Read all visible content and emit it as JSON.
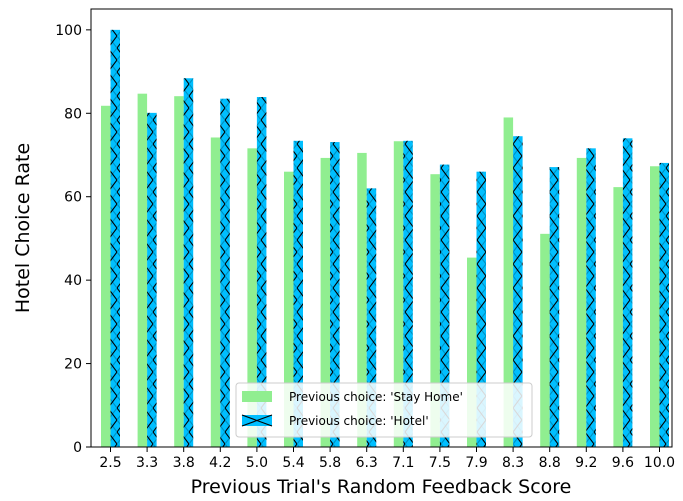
{
  "chart_data": {
    "type": "bar",
    "xlabel": "Previous Trial's Random Feedback Score",
    "ylabel": "Hotel Choice Rate",
    "ylim": [
      0,
      105
    ],
    "yticks": [
      "0",
      "20",
      "40",
      "60",
      "80",
      "100"
    ],
    "grid": false,
    "legend_position": "lower-center",
    "categories": [
      "2.5",
      "3.3",
      "3.8",
      "4.2",
      "5.0",
      "5.4",
      "5.8",
      "6.3",
      "7.1",
      "7.5",
      "7.9",
      "8.3",
      "8.8",
      "9.2",
      "9.6",
      "10.0"
    ],
    "series": [
      {
        "name": "Previous choice: 'Stay Home'",
        "color": "#90ee90",
        "hatch": "none",
        "values": [
          81.8,
          84.7,
          84.1,
          74.2,
          71.6,
          66.0,
          69.3,
          70.5,
          73.3,
          65.4,
          45.4,
          79.0,
          51.1,
          69.3,
          62.3,
          67.3
        ]
      },
      {
        "name": "Previous choice: 'Hotel'",
        "color": "#00bfff",
        "hatch": "x",
        "values": [
          100.0,
          80.1,
          88.4,
          83.5,
          83.9,
          73.4,
          73.1,
          62.0,
          73.4,
          67.7,
          66.0,
          74.5,
          67.1,
          71.6,
          74.0,
          68.1
        ]
      }
    ]
  }
}
